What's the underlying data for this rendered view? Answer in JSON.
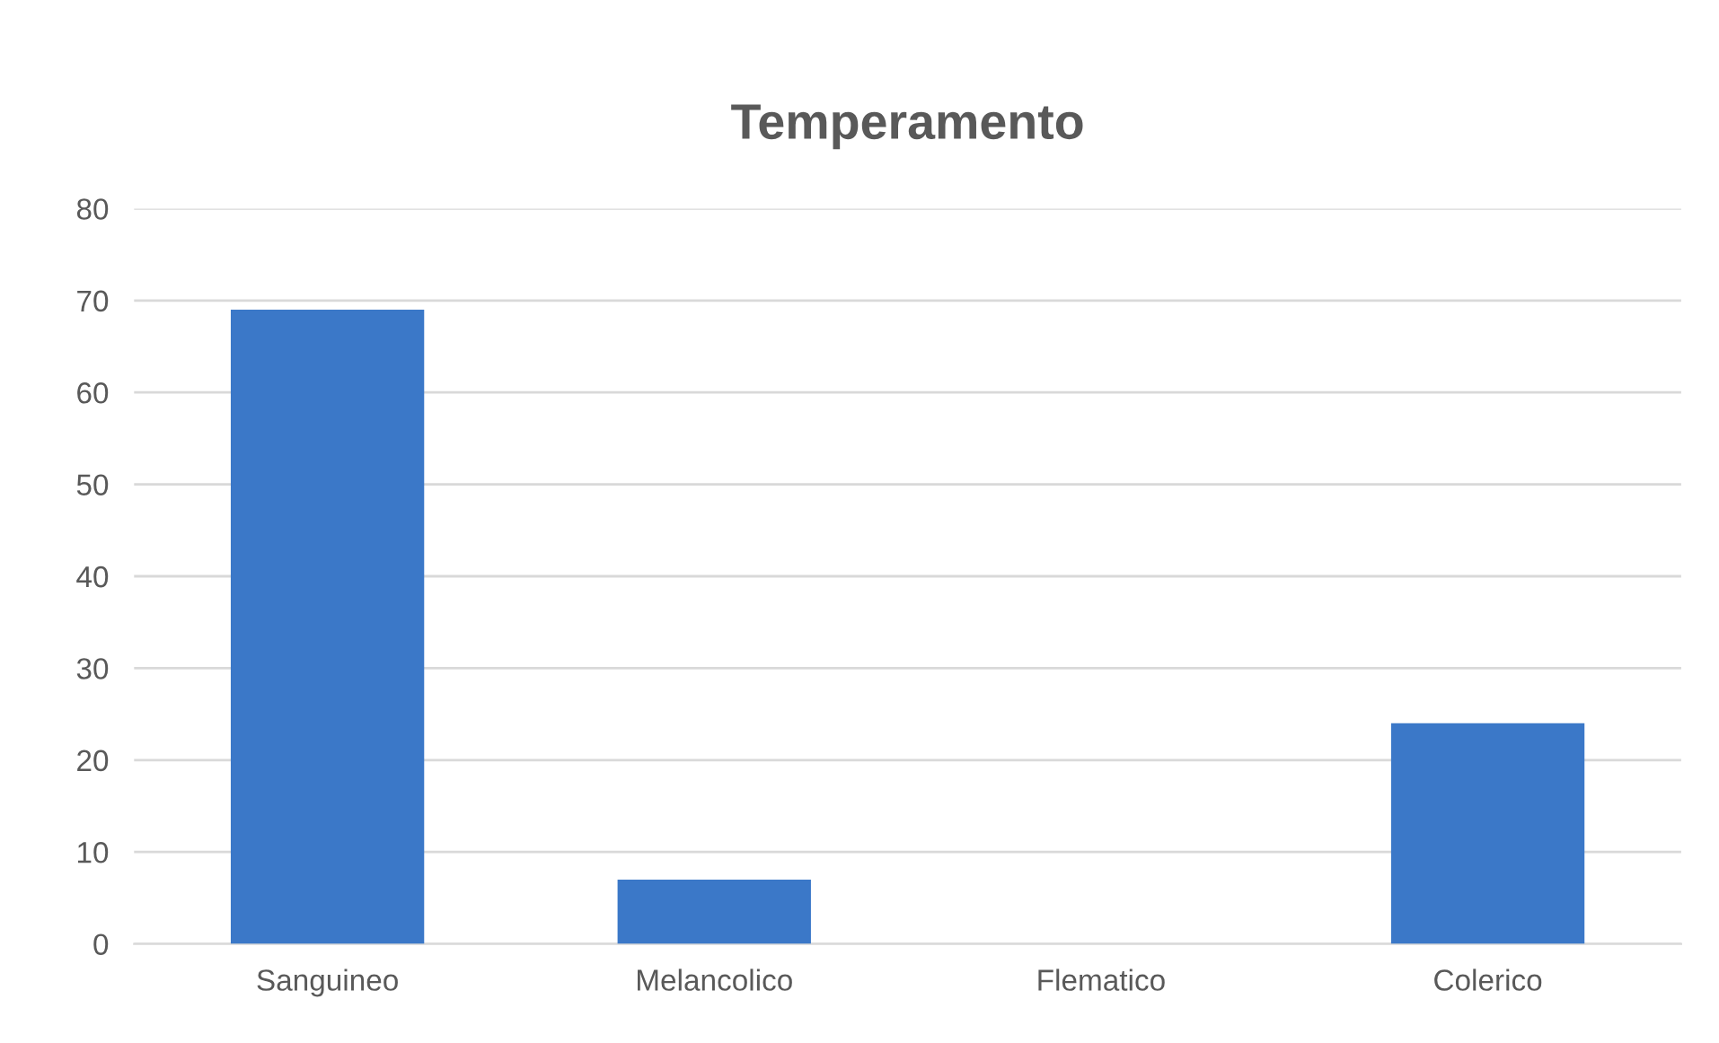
{
  "chart_data": {
    "type": "bar",
    "title": "Temperamento",
    "categories": [
      "Sanguineo",
      "Melancolico",
      "Flematico",
      "Colerico"
    ],
    "values": [
      69,
      7,
      0,
      24
    ],
    "color": "#3b78c8",
    "ylim": [
      0,
      80
    ],
    "yticks": [
      0,
      10,
      20,
      30,
      40,
      50,
      60,
      70,
      80
    ],
    "grid": "y",
    "legend": false
  }
}
